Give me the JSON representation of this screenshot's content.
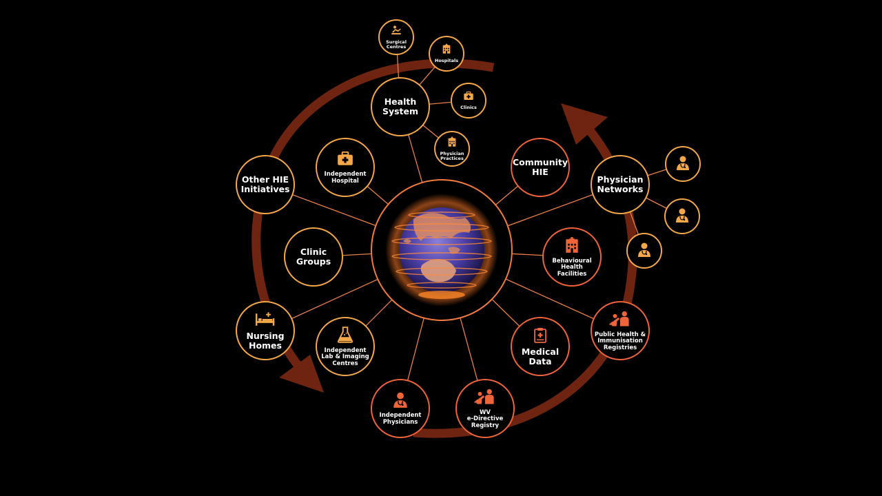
{
  "hub": {
    "icon": "globe-icon"
  },
  "nodes": [
    {
      "id": "health-system",
      "label": "Health\nSystem",
      "size": "big",
      "color": "gold",
      "icon": ""
    },
    {
      "id": "surgical-centres",
      "label": "Surgical\nCentres",
      "size": "sm",
      "color": "gold",
      "icon": "surgery-icon"
    },
    {
      "id": "hospitals",
      "label": "Hospitals",
      "size": "sm",
      "color": "gold",
      "icon": "hospital-icon"
    },
    {
      "id": "clinics",
      "label": "Clinics",
      "size": "sm",
      "color": "gold",
      "icon": "medkit-icon"
    },
    {
      "id": "physician-practices",
      "label": "Physician\nPractices",
      "size": "sm",
      "color": "gold",
      "icon": "hospital-icon"
    },
    {
      "id": "independent-hospital",
      "label": "Independent\nHospital",
      "size": "mid",
      "color": "gold",
      "icon": "medkit-icon"
    },
    {
      "id": "other-hie-initiatives",
      "label": "Other HIE\nInitiatives",
      "size": "big",
      "color": "gold",
      "icon": ""
    },
    {
      "id": "clinic-groups",
      "label": "Clinic\nGroups",
      "size": "big",
      "color": "gold",
      "icon": ""
    },
    {
      "id": "nursing-homes",
      "label": "Nursing\nHomes",
      "size": "big",
      "color": "gold",
      "icon": "bed-icon"
    },
    {
      "id": "independent-lab",
      "label": "Independent\nLab & Imaging\nCentres",
      "size": "mid",
      "color": "gold",
      "icon": "flask-icon"
    },
    {
      "id": "independent-physicians",
      "label": "Independent\nPhysicians",
      "size": "mid",
      "color": "red",
      "icon": "physician-icon"
    },
    {
      "id": "wv-registry",
      "label": "WV\ne-Directive\nRegistry",
      "size": "mid",
      "color": "red",
      "icon": "vaccination-icon"
    },
    {
      "id": "medical-data",
      "label": "Medical\nData",
      "size": "big",
      "color": "red",
      "icon": "clipboard-icon"
    },
    {
      "id": "public-health",
      "label": "Public Health &\nImmunisation\nRegistries",
      "size": "mid",
      "color": "red",
      "icon": "vaccination-icon"
    },
    {
      "id": "behavioural-health",
      "label": "Behavioural\nHealth\nFacilities",
      "size": "mid",
      "color": "red",
      "icon": "hospital-icon"
    },
    {
      "id": "community-hie",
      "label": "Community\nHIE",
      "size": "big",
      "color": "red",
      "icon": ""
    },
    {
      "id": "physician-networks",
      "label": "Physician\nNetworks",
      "size": "big",
      "color": "gold",
      "icon": ""
    },
    {
      "id": "physician-1",
      "label": "",
      "size": "sm",
      "color": "gold",
      "icon": "physician-icon"
    },
    {
      "id": "physician-2",
      "label": "",
      "size": "sm",
      "color": "gold",
      "icon": "physician-icon"
    },
    {
      "id": "physician-3",
      "label": "",
      "size": "sm",
      "color": "gold",
      "icon": "physician-icon"
    }
  ],
  "colors": {
    "gold": "#f5a84a",
    "red": "#f0643a",
    "arrow": "#6e2410",
    "line": "#e8804a"
  }
}
